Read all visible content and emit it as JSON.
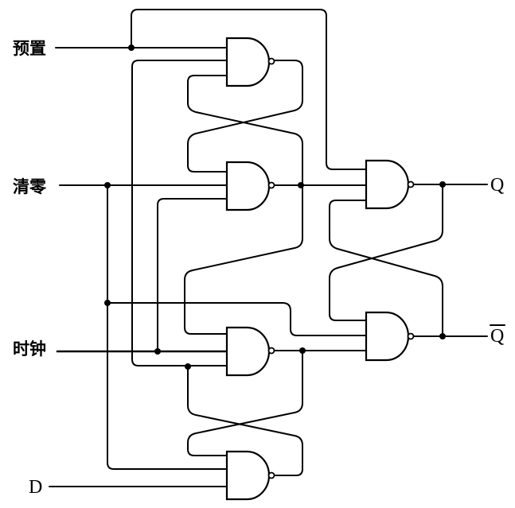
{
  "inputs": {
    "preset": "预置",
    "clear": "清零",
    "clock": "时钟",
    "d": "D"
  },
  "outputs": {
    "q": "Q",
    "q_bar": "Q"
  }
}
